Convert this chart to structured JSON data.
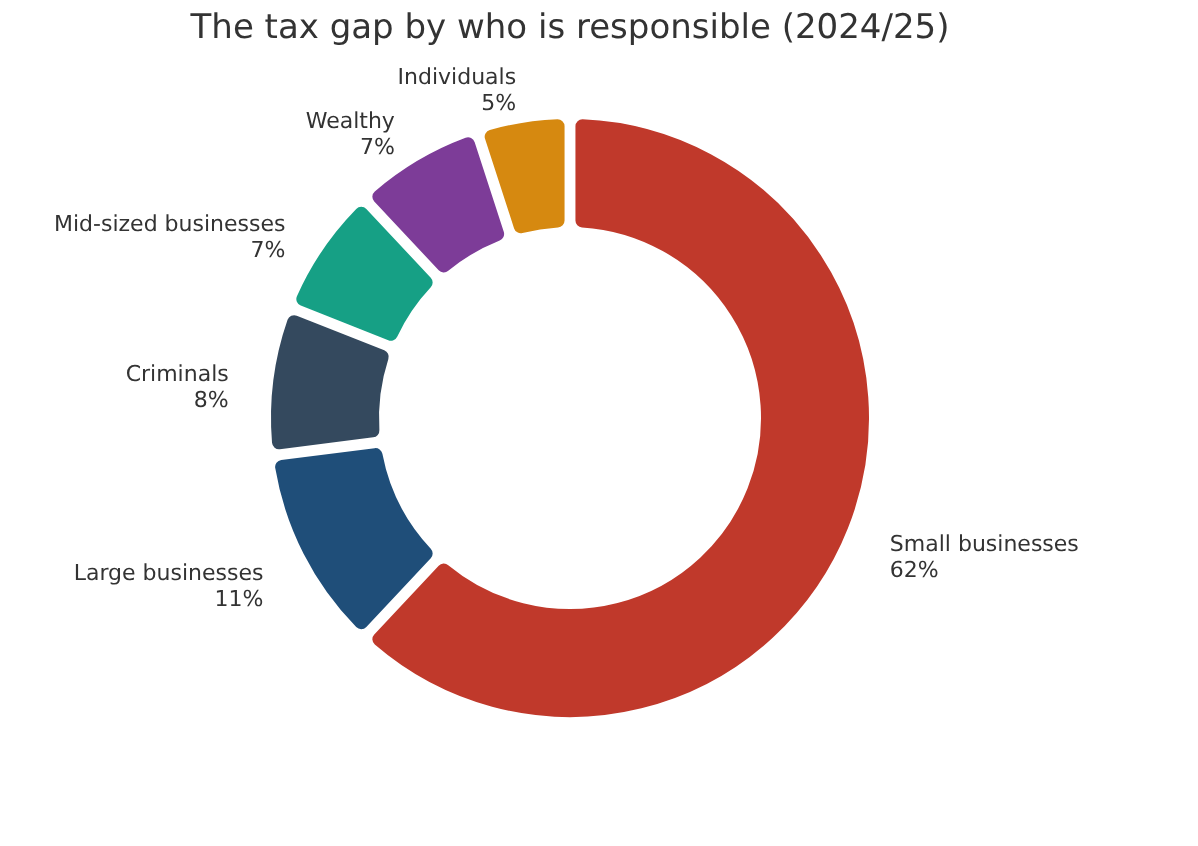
{
  "chart_data": {
    "type": "donut",
    "title": "The tax gap by who is responsible (2024/25)",
    "categories": [
      "Small businesses",
      "Large businesses",
      "Criminals",
      "Mid-sized businesses",
      "Wealthy",
      "Individuals"
    ],
    "values": [
      62,
      11,
      8,
      7,
      7,
      5
    ],
    "value_labels": [
      "62%",
      "11%",
      "8%",
      "7%",
      "7%",
      "5%"
    ],
    "colors": [
      "#c0392b",
      "#1f4e79",
      "#34495e",
      "#16a085",
      "#7d3c98",
      "#d68910"
    ],
    "legend": false
  }
}
